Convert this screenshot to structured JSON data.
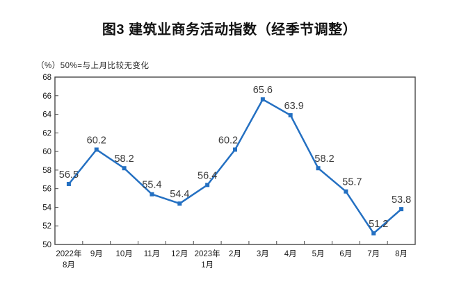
{
  "page": {
    "title": "图3  建筑业商务活动指数（经季节调整）",
    "subtitle": "（%）50%=与上月比较无变化"
  },
  "chart_data": {
    "type": "line",
    "title": "图3  建筑业商务活动指数（经季节调整）",
    "subtitle": "（%）50%=与上月比较无变化",
    "unit": "%",
    "categories": [
      [
        "2022年",
        "8月"
      ],
      [
        "9月"
      ],
      [
        "10月"
      ],
      [
        "11月"
      ],
      [
        "12月"
      ],
      [
        "2023年",
        "1月"
      ],
      [
        "2月"
      ],
      [
        "3月"
      ],
      [
        "4月"
      ],
      [
        "5月"
      ],
      [
        "6月"
      ],
      [
        "7月"
      ],
      [
        "8月"
      ]
    ],
    "values": [
      56.5,
      60.2,
      58.2,
      55.4,
      54.4,
      56.4,
      60.2,
      65.6,
      63.9,
      58.2,
      55.7,
      51.2,
      53.8
    ],
    "data_labels": [
      "56.5",
      "60.2",
      "58.2",
      "55.4",
      "54.4",
      "56.4",
      "60.2",
      "65.6",
      "63.9",
      "58.2",
      "55.7",
      "51.2",
      "53.8"
    ],
    "ylim": [
      50,
      68
    ],
    "ytick_step": 2,
    "ytick_labels": [
      "50",
      "52",
      "54",
      "56",
      "58",
      "60",
      "62",
      "64",
      "66",
      "68"
    ],
    "grid": false,
    "legend": "none",
    "line_color": "#2470C2",
    "marker": "square",
    "marker_color": "#2470C2",
    "label_color": "#3a3a3a",
    "axis_color": "#474747",
    "tick_label_color": "#1a1a1a"
  }
}
